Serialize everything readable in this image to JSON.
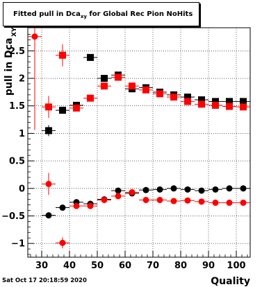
{
  "chart_data": {
    "type": "scatter",
    "title": "Fitted pull in Dca",
    "title_subscript": "xy",
    "title_suffix": " for Global Rec Pion NoHits",
    "xlabel": "Quality",
    "ylabel": "pull in Dca",
    "ylabel_subscript": "XY",
    "xlim": [
      25,
      105
    ],
    "ylim": [
      -1.25,
      2.92
    ],
    "xticks": [
      30,
      40,
      50,
      60,
      70,
      80,
      90,
      100
    ],
    "yticks": [
      -1,
      -0.5,
      0,
      0.5,
      1,
      1.5,
      2,
      2.5
    ],
    "ytick_labels": [
      "−1",
      "−0.5",
      "0",
      "0.5",
      "1",
      "1.5",
      "2",
      "2.5"
    ],
    "xerr": 2.5,
    "series": [
      {
        "color": "#000000",
        "marker": "square",
        "points": [
          {
            "x": 32.5,
            "y": 1.05,
            "yerr": 0.1
          },
          {
            "x": 37.5,
            "y": 1.42,
            "yerr": 0.03
          },
          {
            "x": 42.5,
            "y": 1.51,
            "yerr": 0.03
          },
          {
            "x": 47.5,
            "y": 2.38,
            "yerr": 0.06
          },
          {
            "x": 52.5,
            "y": 2.0,
            "yerr": 0.02
          },
          {
            "x": 57.5,
            "y": 2.06,
            "yerr": 0.02
          },
          {
            "x": 62.5,
            "y": 1.81,
            "yerr": 0.02
          },
          {
            "x": 67.5,
            "y": 1.83,
            "yerr": 0.01
          },
          {
            "x": 72.5,
            "y": 1.75,
            "yerr": 0.01
          },
          {
            "x": 77.5,
            "y": 1.7,
            "yerr": 0.01
          },
          {
            "x": 82.5,
            "y": 1.66,
            "yerr": 0.01
          },
          {
            "x": 87.5,
            "y": 1.61,
            "yerr": 0.01
          },
          {
            "x": 92.5,
            "y": 1.58,
            "yerr": 0.01
          },
          {
            "x": 97.5,
            "y": 1.58,
            "yerr": 0.01
          },
          {
            "x": 102.5,
            "y": 1.58,
            "yerr": 0.01
          }
        ]
      },
      {
        "color": "#ff0000",
        "marker": "square",
        "points": [
          {
            "x": 32.5,
            "y": 1.48,
            "yerr": 0.2
          },
          {
            "x": 37.5,
            "y": 2.42,
            "yerr": 0.2
          },
          {
            "x": 42.5,
            "y": 1.46,
            "yerr": 0.05
          },
          {
            "x": 47.5,
            "y": 1.64,
            "yerr": 0.03
          },
          {
            "x": 52.5,
            "y": 1.86,
            "yerr": 0.02
          },
          {
            "x": 57.5,
            "y": 2.02,
            "yerr": 0.02
          },
          {
            "x": 62.5,
            "y": 1.86,
            "yerr": 0.02
          },
          {
            "x": 67.5,
            "y": 1.79,
            "yerr": 0.01
          },
          {
            "x": 72.5,
            "y": 1.72,
            "yerr": 0.01
          },
          {
            "x": 77.5,
            "y": 1.66,
            "yerr": 0.01
          },
          {
            "x": 82.5,
            "y": 1.58,
            "yerr": 0.01
          },
          {
            "x": 87.5,
            "y": 1.53,
            "yerr": 0.01
          },
          {
            "x": 92.5,
            "y": 1.51,
            "yerr": 0.01
          },
          {
            "x": 97.5,
            "y": 1.49,
            "yerr": 0.01
          },
          {
            "x": 102.5,
            "y": 1.48,
            "yerr": 0.01
          }
        ]
      },
      {
        "color": "#000000",
        "marker": "circle",
        "points": [
          {
            "x": 32.5,
            "y": -0.49,
            "yerr": 0.03
          },
          {
            "x": 37.5,
            "y": -0.35,
            "yerr": 0.03
          },
          {
            "x": 42.5,
            "y": -0.25,
            "yerr": 0.02
          },
          {
            "x": 47.5,
            "y": -0.28,
            "yerr": 0.02
          },
          {
            "x": 52.5,
            "y": -0.2,
            "yerr": 0.02
          },
          {
            "x": 57.5,
            "y": -0.04,
            "yerr": 0.01
          },
          {
            "x": 62.5,
            "y": -0.09,
            "yerr": 0.01
          },
          {
            "x": 67.5,
            "y": -0.03,
            "yerr": 0.01
          },
          {
            "x": 72.5,
            "y": -0.02,
            "yerr": 0.01
          },
          {
            "x": 77.5,
            "y": 0.0,
            "yerr": 0.01
          },
          {
            "x": 82.5,
            "y": -0.02,
            "yerr": 0.01
          },
          {
            "x": 87.5,
            "y": -0.04,
            "yerr": 0.01
          },
          {
            "x": 92.5,
            "y": -0.02,
            "yerr": 0.01
          },
          {
            "x": 97.5,
            "y": 0.0,
            "yerr": 0.01
          },
          {
            "x": 102.5,
            "y": 0.0,
            "yerr": 0.01
          }
        ]
      },
      {
        "color": "#ff0000",
        "marker": "circle",
        "points": [
          {
            "x": 27.5,
            "y": 2.76,
            "yerr": 1.7
          },
          {
            "x": 32.5,
            "y": 0.08,
            "yerr": 0.2
          },
          {
            "x": 37.5,
            "y": -0.99,
            "yerr": 0.1
          },
          {
            "x": 42.5,
            "y": -0.32,
            "yerr": 0.04
          },
          {
            "x": 47.5,
            "y": -0.32,
            "yerr": 0.03
          },
          {
            "x": 52.5,
            "y": -0.21,
            "yerr": 0.02
          },
          {
            "x": 57.5,
            "y": -0.14,
            "yerr": 0.02
          },
          {
            "x": 62.5,
            "y": -0.07,
            "yerr": 0.02
          },
          {
            "x": 67.5,
            "y": -0.21,
            "yerr": 0.01
          },
          {
            "x": 72.5,
            "y": -0.21,
            "yerr": 0.01
          },
          {
            "x": 77.5,
            "y": -0.23,
            "yerr": 0.01
          },
          {
            "x": 82.5,
            "y": -0.22,
            "yerr": 0.01
          },
          {
            "x": 87.5,
            "y": -0.24,
            "yerr": 0.01
          },
          {
            "x": 92.5,
            "y": -0.26,
            "yerr": 0.01
          },
          {
            "x": 97.5,
            "y": -0.26,
            "yerr": 0.01
          },
          {
            "x": 102.5,
            "y": -0.26,
            "yerr": 0.01
          }
        ]
      }
    ]
  },
  "footer": {
    "timestamp": "Sat Oct 17 20:18:59 2020"
  }
}
